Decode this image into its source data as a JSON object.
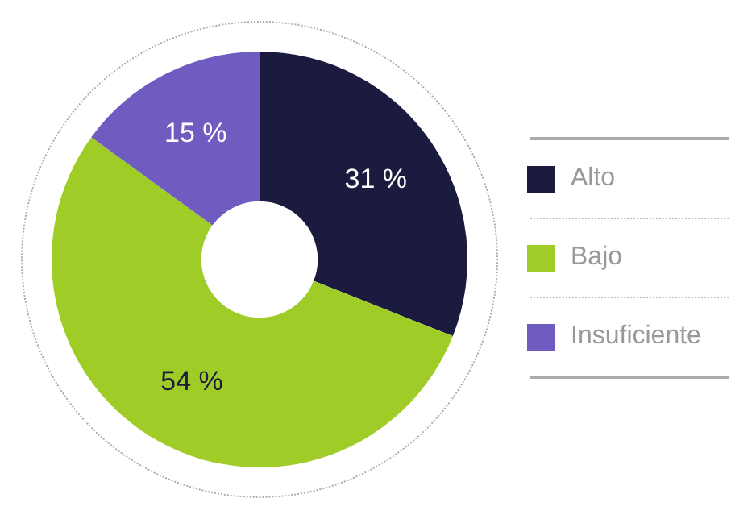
{
  "chart_data": {
    "type": "donut",
    "categories": [
      "Alto",
      "Bajo",
      "Insuficiente"
    ],
    "values": [
      31,
      54,
      15
    ],
    "colors": [
      "#1b1b40",
      "#a0cc28",
      "#705cc0"
    ],
    "value_labels": [
      "31 %",
      "54 %",
      "15 %"
    ],
    "legend": "right"
  }
}
